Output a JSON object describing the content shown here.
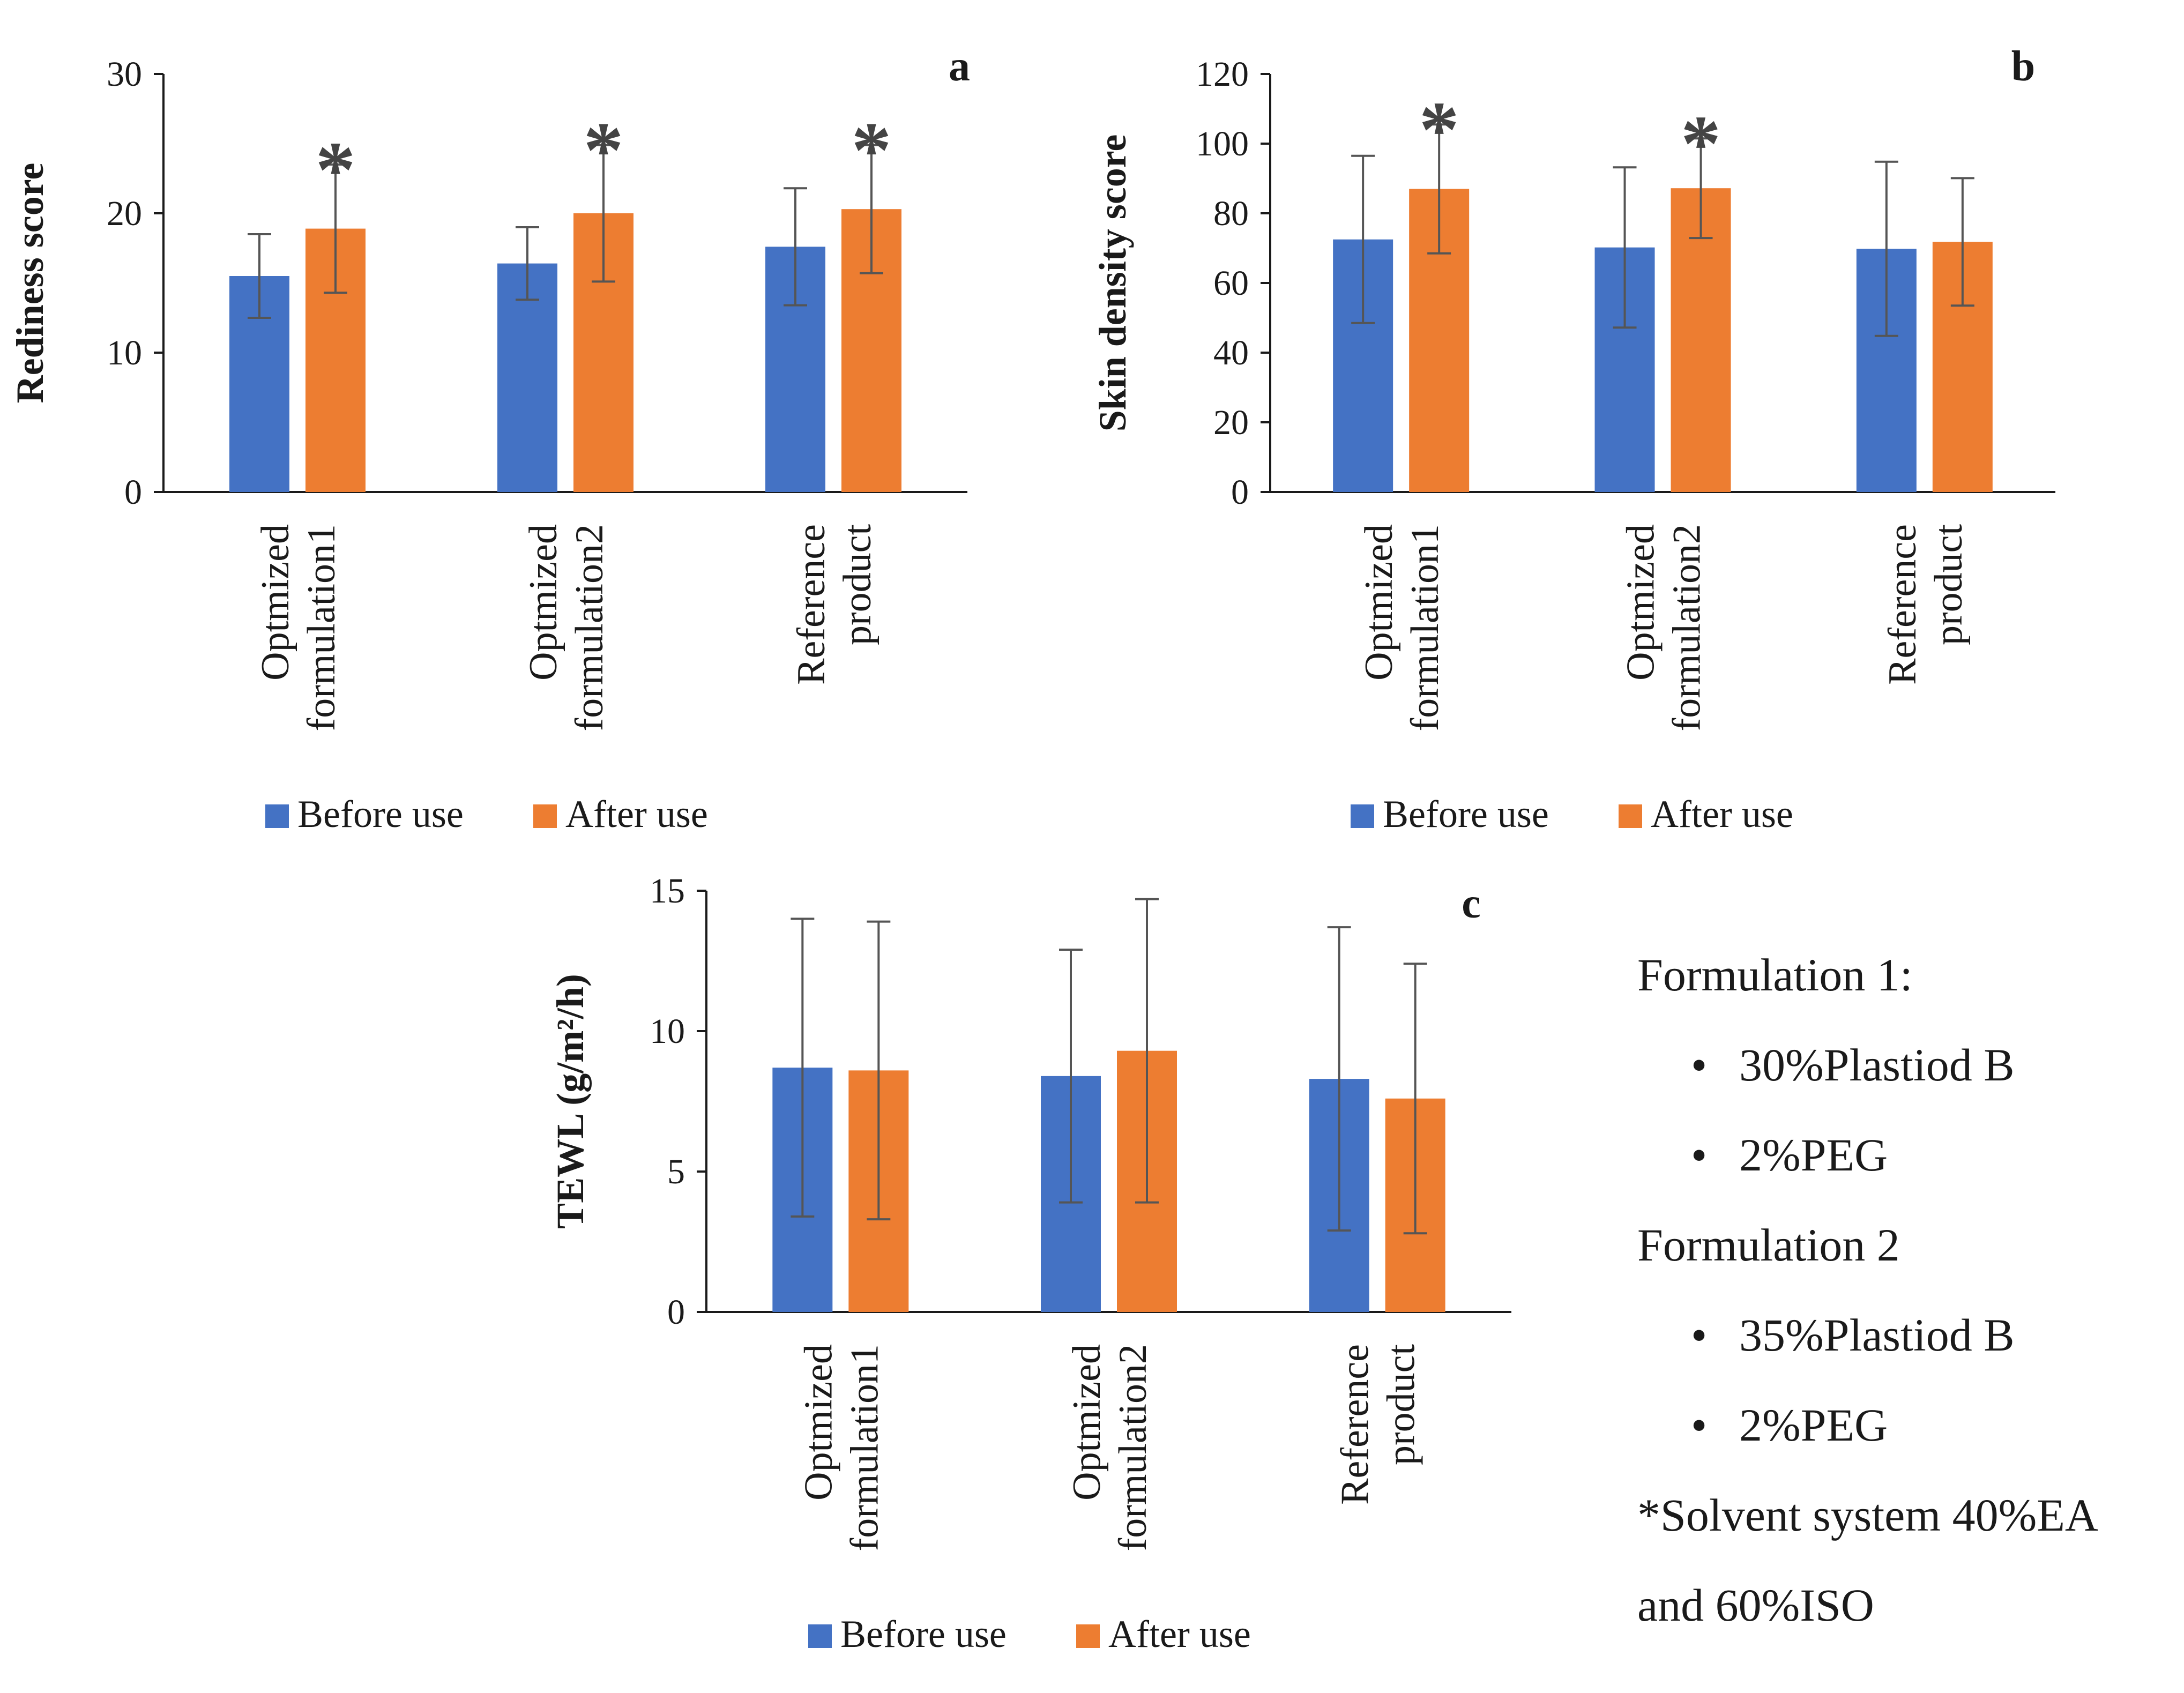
{
  "chart_data": [
    {
      "type": "bar",
      "panel_label": "a",
      "title": "",
      "xlabel": "",
      "ylabel": "Rediness score",
      "ylim": [
        0,
        30
      ],
      "yticks": [
        "0",
        "10",
        "20",
        "30"
      ],
      "categories": [
        [
          "Optmized",
          "formulation1"
        ],
        [
          "Optmized",
          "formulation2"
        ],
        [
          "Reference",
          "product"
        ]
      ],
      "series": [
        {
          "name": "Before use",
          "color": "#4472C4",
          "values": [
            15.5,
            16.4,
            17.6
          ],
          "errors": [
            3.0,
            2.6,
            4.2
          ]
        },
        {
          "name": "After use",
          "color": "#ED7D31",
          "values": [
            18.9,
            20.0,
            20.3
          ],
          "errors": [
            4.6,
            4.9,
            4.6
          ]
        }
      ],
      "significance": {
        "symbol": "*",
        "series": "After use",
        "categories": [
          0,
          1,
          2
        ]
      },
      "legend": {
        "position": "bottom",
        "entries": [
          "Before use",
          "After use"
        ]
      }
    },
    {
      "type": "bar",
      "panel_label": "b",
      "title": "",
      "xlabel": "",
      "ylabel": "Skin density score",
      "ylim": [
        0,
        120
      ],
      "yticks": [
        "0",
        "20",
        "40",
        "60",
        "80",
        "100",
        "120"
      ],
      "categories": [
        [
          "Optmized",
          "formulation1"
        ],
        [
          "Optmized",
          "formulation2"
        ],
        [
          "Reference",
          "product"
        ]
      ],
      "series": [
        {
          "name": "Before use",
          "color": "#4472C4",
          "values": [
            72.5,
            70.2,
            69.8
          ],
          "errors": [
            24.0,
            23.0,
            25.0
          ]
        },
        {
          "name": "After use",
          "color": "#ED7D31",
          "values": [
            87.0,
            87.2,
            71.8
          ],
          "errors": [
            18.5,
            14.3,
            18.3
          ]
        }
      ],
      "significance": {
        "symbol": "*",
        "series": "After use",
        "categories": [
          0,
          1
        ]
      },
      "legend": {
        "position": "bottom",
        "entries": [
          "Before use",
          "After use"
        ]
      }
    },
    {
      "type": "bar",
      "panel_label": "c",
      "title": "",
      "xlabel": "",
      "ylabel": "TEWL (g/m²/h)",
      "ylim": [
        0,
        15
      ],
      "yticks": [
        "0",
        "5",
        "10",
        "15"
      ],
      "categories": [
        [
          "Optmized",
          "formulation1"
        ],
        [
          "Optmized",
          "formulation2"
        ],
        [
          "Reference",
          "product"
        ]
      ],
      "series": [
        {
          "name": "Before use",
          "color": "#4472C4",
          "values": [
            8.7,
            8.4,
            8.3
          ],
          "errors": [
            5.3,
            4.5,
            5.4
          ]
        },
        {
          "name": "After use",
          "color": "#ED7D31",
          "values": [
            8.6,
            9.3,
            7.6
          ],
          "errors": [
            5.3,
            5.4,
            4.8
          ]
        }
      ],
      "significance": {
        "symbol": "*",
        "series": "After use",
        "categories": []
      },
      "legend": {
        "position": "bottom",
        "entries": [
          "Before use",
          "After use"
        ]
      }
    }
  ],
  "notes": {
    "formulation1_title": "Formulation 1:",
    "formulation1_items": [
      "30%Plastiod B",
      "2%PEG"
    ],
    "formulation2_title": "Formulation 2",
    "formulation2_items": [
      "35%Plastiod B",
      "2%PEG"
    ],
    "solvent_line1": "*Solvent system 40%EA",
    "solvent_line2": "and 60%ISO"
  }
}
